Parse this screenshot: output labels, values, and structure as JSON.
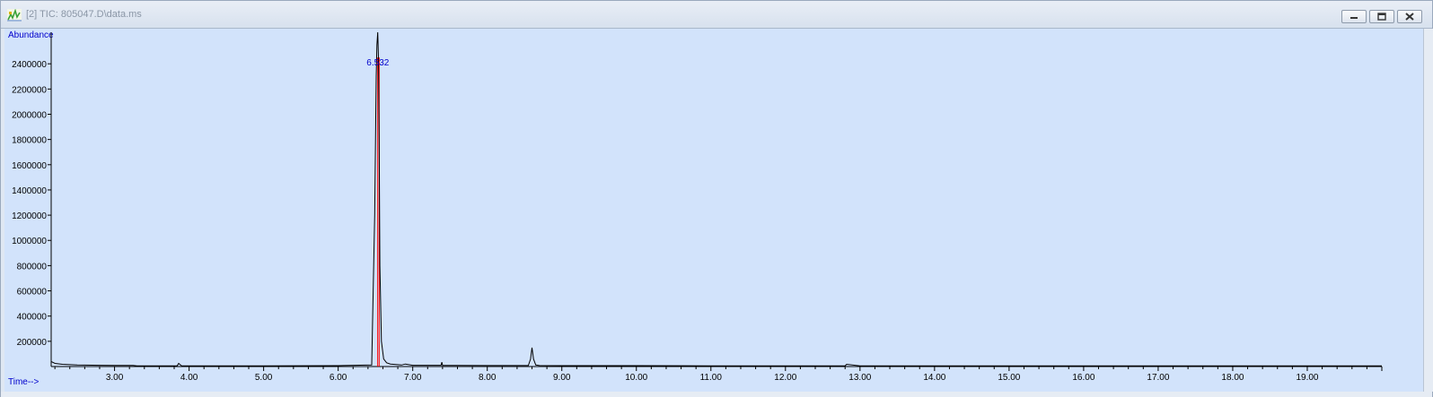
{
  "window": {
    "title": "[2] TIC: 805047.D\\data.ms",
    "app_icon": "chromatogram-app-icon",
    "buttons": {
      "minimize": "minimize-icon",
      "restore": "restore-icon",
      "close": "close-icon"
    }
  },
  "colors": {
    "plot_background": "#d2e3fb",
    "trace": "#000000",
    "integration_marker": "#ff0000",
    "label_blue": "#0000cc"
  },
  "chart_data": {
    "type": "line",
    "title": "",
    "ylabel": "Abundance",
    "xlabel": "Time-->",
    "xlim": [
      2.15,
      20.0
    ],
    "ylim": [
      0,
      2650000
    ],
    "x_ticks": [
      "3.00",
      "4.00",
      "5.00",
      "6.00",
      "7.00",
      "8.00",
      "9.00",
      "10.00",
      "11.00",
      "12.00",
      "13.00",
      "14.00",
      "15.00",
      "16.00",
      "17.00",
      "18.00",
      "19.00"
    ],
    "y_ticks": [
      "200000",
      "400000",
      "600000",
      "800000",
      "1000000",
      "1200000",
      "1400000",
      "1600000",
      "1800000",
      "2000000",
      "2200000",
      "2400000"
    ],
    "grid": false,
    "series": [
      {
        "x": [
          2.15,
          2.2,
          2.3,
          2.5,
          2.8,
          3.0,
          3.25,
          3.3,
          3.84,
          3.86,
          3.9,
          4.5,
          5.0,
          6.0,
          6.45,
          6.49,
          6.51,
          6.52,
          6.53,
          6.54,
          6.55,
          6.56,
          6.58,
          6.61,
          6.65,
          6.7,
          6.85,
          6.9,
          7.0,
          7.38,
          7.39,
          7.4,
          8.0,
          8.55,
          8.58,
          8.6,
          8.62,
          8.65,
          8.7,
          9.0,
          10.0,
          11.0,
          12.0,
          12.8,
          12.82,
          13.0,
          14.0,
          15.0,
          16.0,
          17.0,
          18.0,
          19.0,
          20.0
        ],
        "y": [
          40000,
          25000,
          18000,
          12000,
          10000,
          9000,
          9000,
          6000,
          6000,
          25000,
          6000,
          6000,
          6000,
          7000,
          12000,
          1200000,
          2300000,
          2550000,
          2650000,
          2450000,
          1800000,
          800000,
          200000,
          60000,
          30000,
          20000,
          12000,
          20000,
          10000,
          10000,
          35000,
          9000,
          8000,
          8000,
          60000,
          150000,
          60000,
          12000,
          8000,
          7000,
          7000,
          6000,
          6000,
          6000,
          18000,
          6000,
          6000,
          6000,
          6000,
          6000,
          6000,
          6000,
          6000
        ]
      }
    ],
    "annotations": [
      {
        "label": "6.532",
        "x": 6.532,
        "y": 2400000
      }
    ],
    "integration_markers": [
      6.53,
      6.55
    ]
  }
}
